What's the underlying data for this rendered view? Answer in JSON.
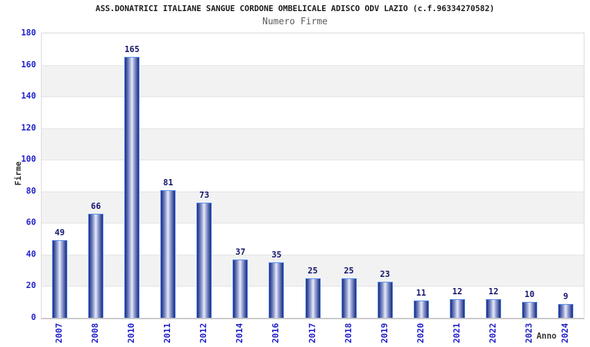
{
  "chart_data": {
    "type": "bar",
    "title": "ASS.DONATRICI ITALIANE SANGUE CORDONE OMBELICALE ADISCO ODV LAZIO (c.f.96334270582)",
    "subtitle": "Numero Firme",
    "xlabel": "Anno",
    "ylabel": "Firme",
    "categories": [
      "2007",
      "2008",
      "2010",
      "2011",
      "2012",
      "2014",
      "2016",
      "2017",
      "2018",
      "2019",
      "2020",
      "2021",
      "2022",
      "2023",
      "2024"
    ],
    "values": [
      49,
      66,
      165,
      81,
      73,
      37,
      35,
      25,
      25,
      23,
      11,
      12,
      12,
      10,
      9
    ],
    "ylim": [
      0,
      180
    ],
    "ytick_step": 20,
    "grid": true,
    "legend_position": "none",
    "band_fill": "alternating horizontal bands every 20 units",
    "colors": {
      "tick_label": "#2424cd",
      "value_label": "#191970",
      "bar_dark": "#1e2a7d",
      "bar_light": "#e8ebf7",
      "bar_border": "#5590ee",
      "band_gray": "#f2f2f2",
      "gridline": "#e3e3e3",
      "axis_line": "#c8c8c8",
      "title": "#1c1c1c",
      "subtitle": "#5a5a5a",
      "background": "#ffffff"
    }
  }
}
